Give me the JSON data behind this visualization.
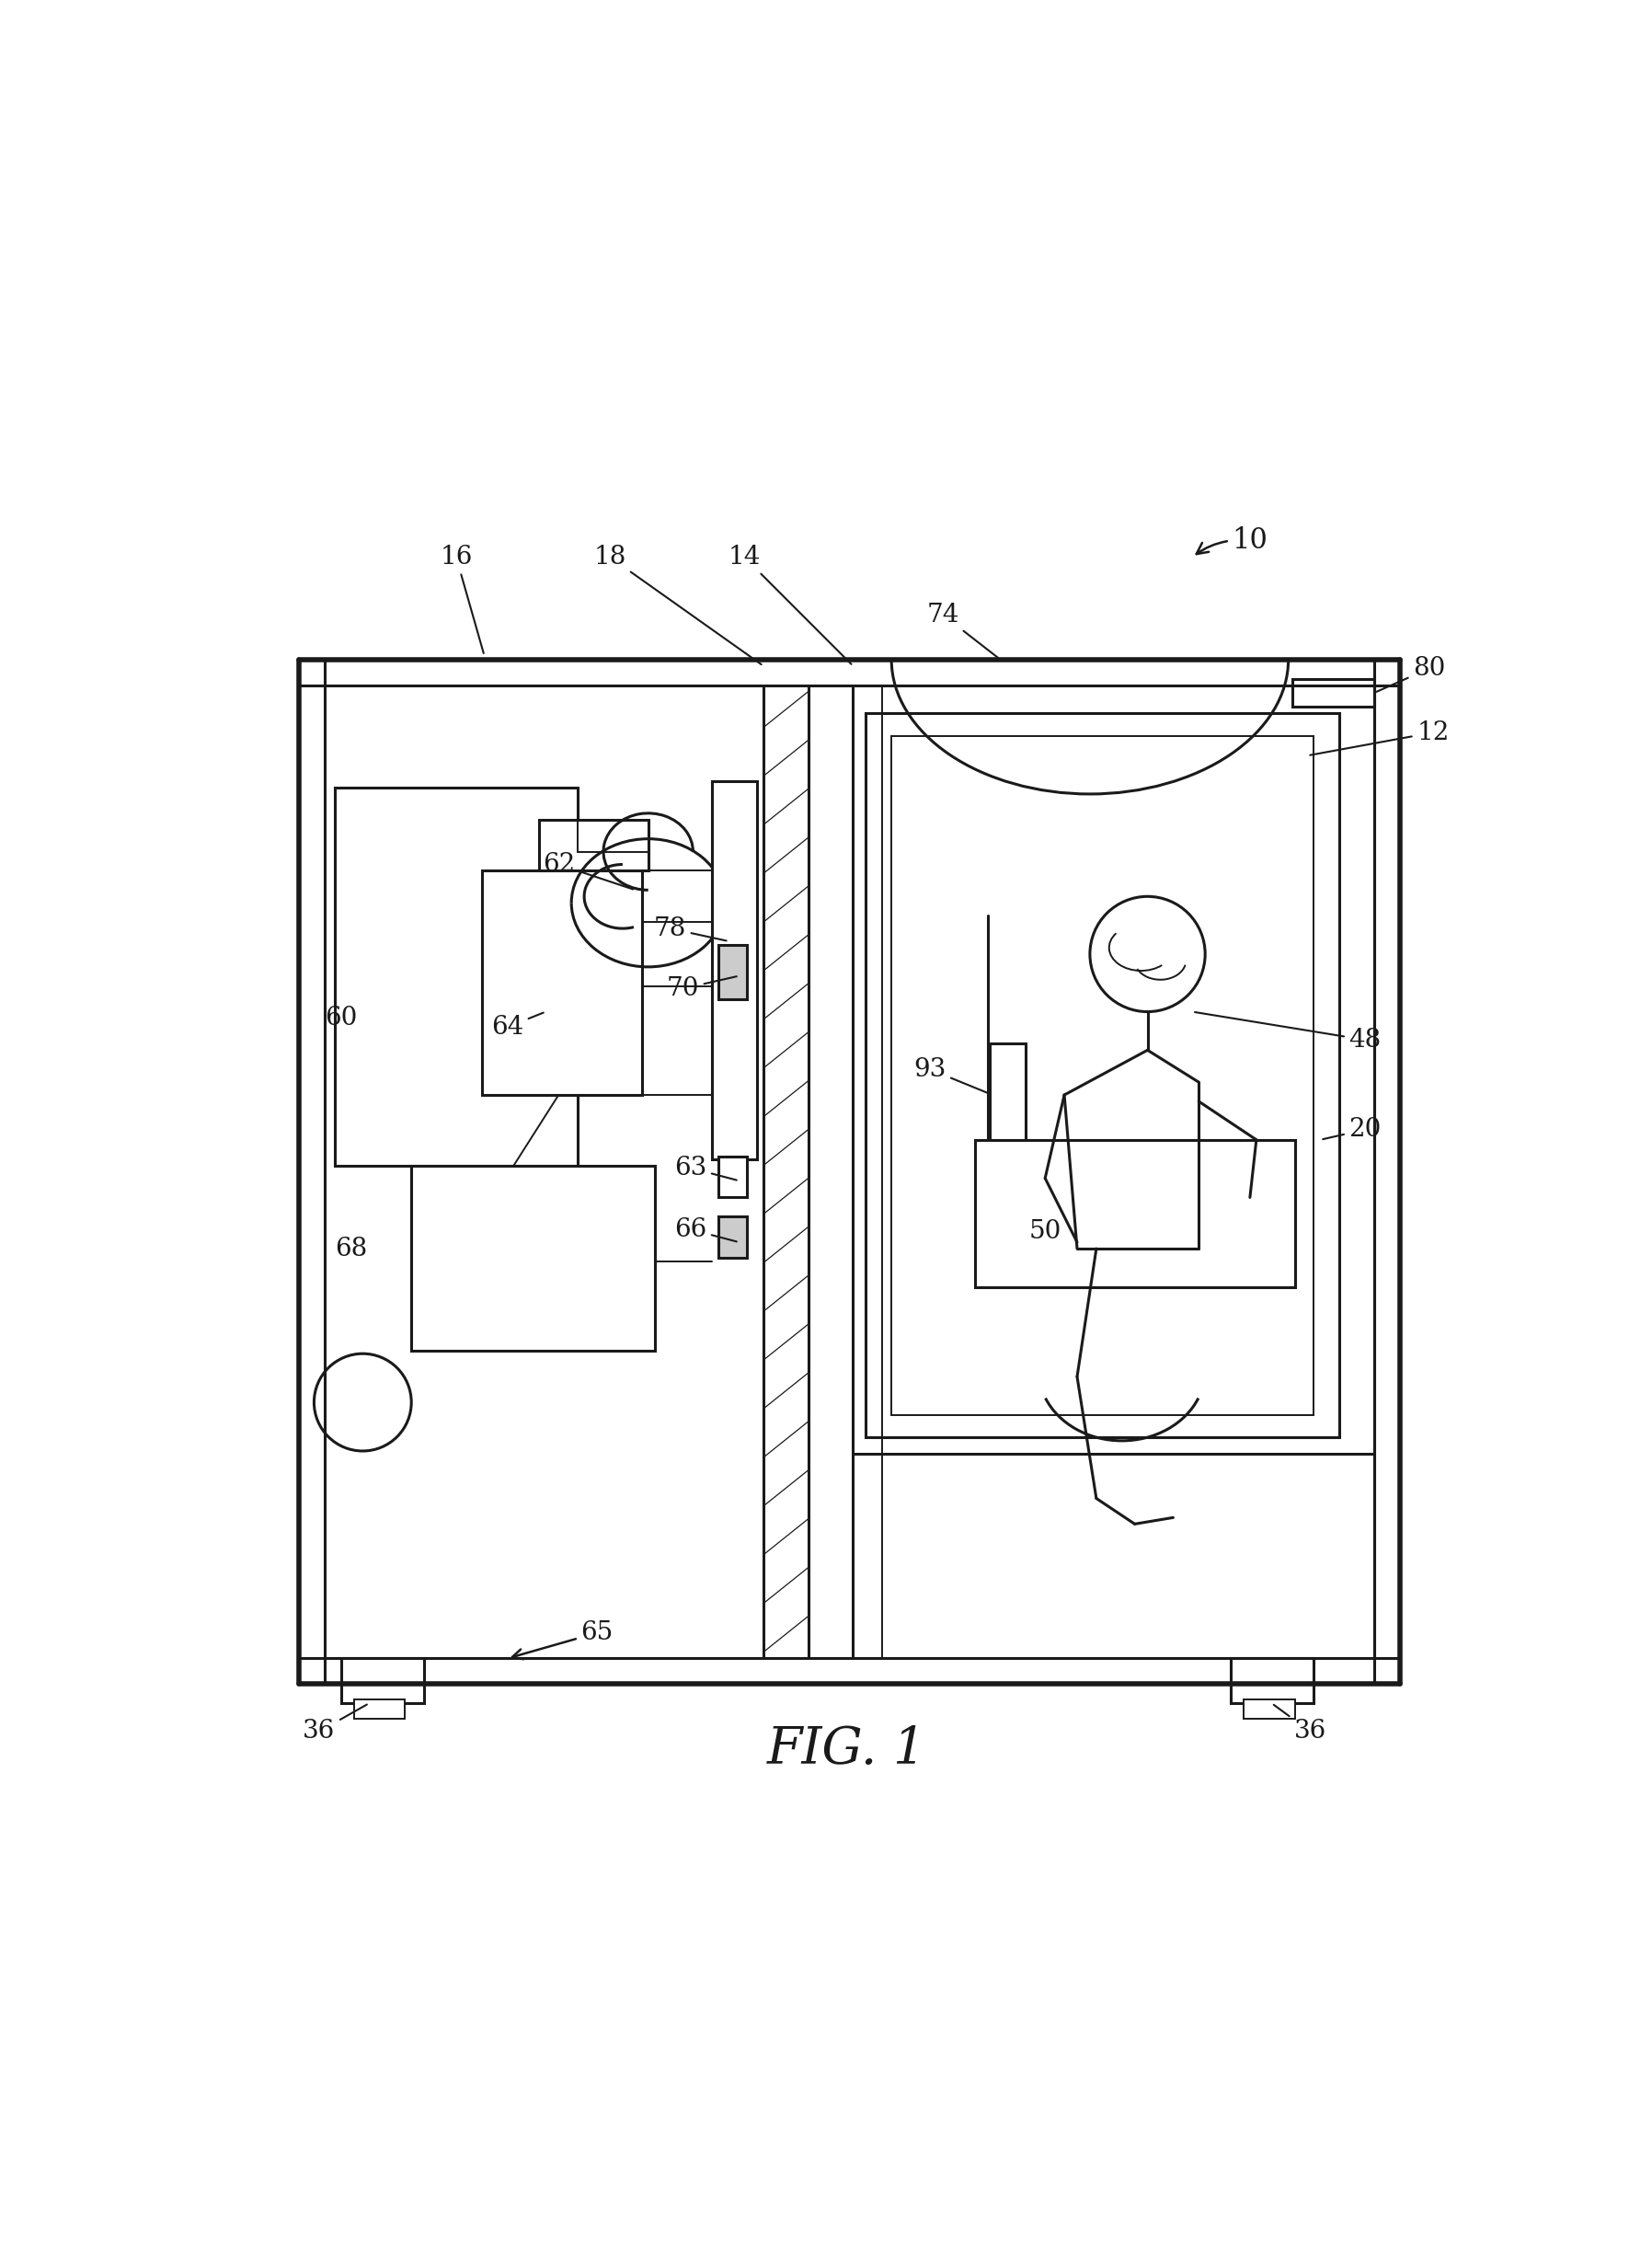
{
  "title": "FIG. 1",
  "title_fontsize": 40,
  "bg_color": "#ffffff",
  "line_color": "#1a1a1a",
  "fig_width": 17.96,
  "fig_height": 24.53
}
